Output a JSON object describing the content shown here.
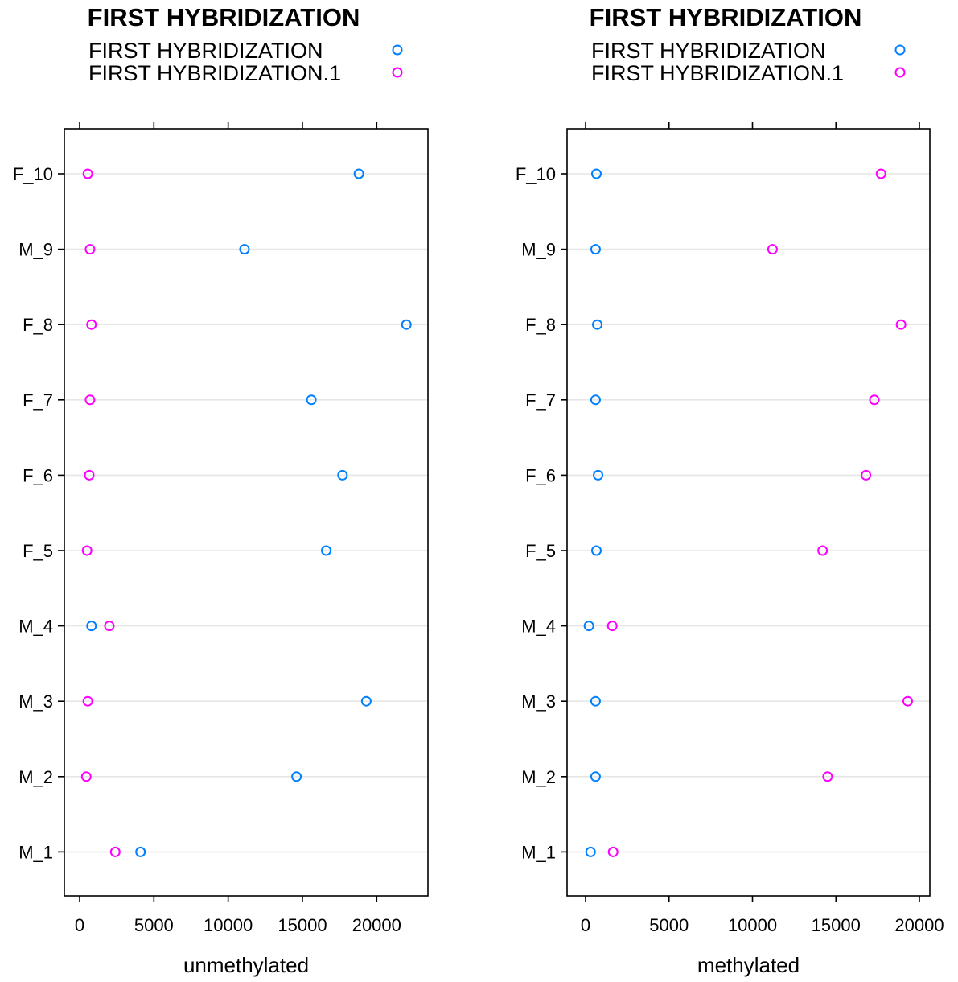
{
  "colors": {
    "series1": "#0080ff",
    "series2": "#ff00ff"
  },
  "chart_data": [
    {
      "type": "scatter",
      "title": "FIRST HYBRIDIZATION",
      "xlabel": "unmethylated",
      "ylabel": "",
      "xlim": [
        -1100,
        23400
      ],
      "xticks": [
        0,
        5000,
        10000,
        15000,
        20000
      ],
      "xtick_labels": [
        "0",
        "5000",
        "10000",
        "15000",
        "20000"
      ],
      "categories": [
        "F_10",
        "M_9",
        "F_8",
        "F_7",
        "F_6",
        "F_5",
        "M_4",
        "M_3",
        "M_2",
        "M_1"
      ],
      "legend_placement": "top",
      "grid": true,
      "series": [
        {
          "name": "FIRST HYBRIDIZATION",
          "color": "#0080ff",
          "values": [
            18800,
            11100,
            22000,
            15600,
            17700,
            16600,
            800,
            19300,
            14600,
            4100
          ]
        },
        {
          "name": "FIRST HYBRIDIZATION.1",
          "color": "#ff00ff",
          "values": [
            550,
            700,
            800,
            700,
            650,
            500,
            2000,
            550,
            450,
            2400
          ]
        }
      ]
    },
    {
      "type": "scatter",
      "title": "FIRST HYBRIDIZATION",
      "xlabel": "methylated",
      "ylabel": "",
      "xlim": [
        -1100,
        20400
      ],
      "xticks": [
        0,
        5000,
        10000,
        15000,
        20000
      ],
      "xtick_labels": [
        "0",
        "5000",
        "10000",
        "15000",
        "20000"
      ],
      "categories": [
        "F_10",
        "M_9",
        "F_8",
        "F_7",
        "F_6",
        "F_5",
        "M_4",
        "M_3",
        "M_2",
        "M_1"
      ],
      "legend_placement": "top",
      "grid": true,
      "series": [
        {
          "name": "FIRST HYBRIDIZATION",
          "color": "#0080ff",
          "values": [
            650,
            600,
            700,
            600,
            750,
            650,
            200,
            600,
            600,
            300
          ]
        },
        {
          "name": "FIRST HYBRIDIZATION.1",
          "color": "#ff00ff",
          "values": [
            17700,
            11200,
            18900,
            17300,
            16800,
            14200,
            1600,
            19300,
            14500,
            1650
          ]
        }
      ]
    }
  ]
}
